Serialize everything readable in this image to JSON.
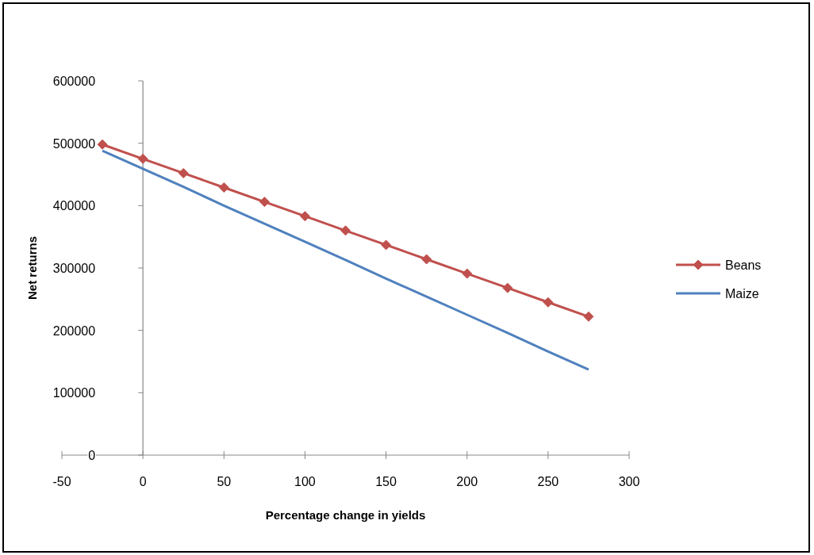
{
  "chart_data": {
    "type": "line",
    "xlabel": "Percentage change  in yields",
    "ylabel": "Net returns",
    "x": [
      -25,
      0,
      25,
      50,
      75,
      100,
      125,
      150,
      175,
      200,
      225,
      250,
      275
    ],
    "series": [
      {
        "name": "Beans",
        "color": "#c0504d",
        "marker": "diamond",
        "values": [
          498000,
          475000,
          452000,
          429000,
          406000,
          383000,
          360000,
          337000,
          314000,
          291000,
          268000,
          245000,
          222000
        ]
      },
      {
        "name": "Maize",
        "color": "#4f81bd",
        "marker": "none",
        "values": [
          488000,
          459000,
          430000,
          400000,
          371000,
          342000,
          313000,
          283000,
          254000,
          225000,
          196000,
          166000,
          137000
        ]
      }
    ],
    "xlim": [
      -50,
      300
    ],
    "xticks": [
      -50,
      0,
      50,
      100,
      150,
      200,
      250,
      300
    ],
    "ylim": [
      0,
      600000
    ],
    "yticks": [
      0,
      100000,
      200000,
      300000,
      400000,
      500000,
      600000
    ],
    "legend": "right",
    "line_style": "solid"
  }
}
